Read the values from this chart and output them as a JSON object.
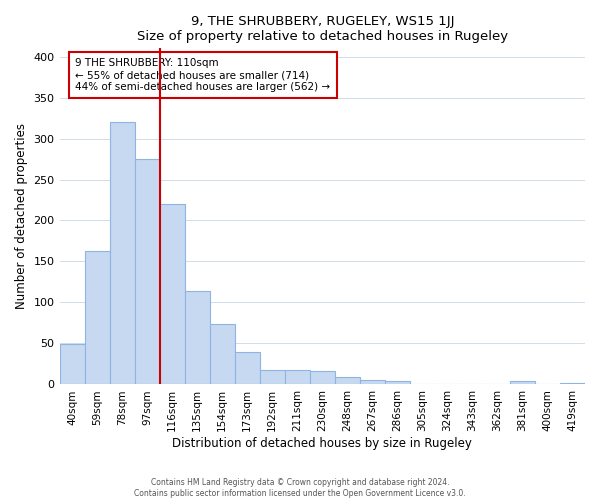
{
  "title": "9, THE SHRUBBERY, RUGELEY, WS15 1JJ",
  "subtitle": "Size of property relative to detached houses in Rugeley",
  "xlabel": "Distribution of detached houses by size in Rugeley",
  "ylabel": "Number of detached properties",
  "footer_line1": "Contains HM Land Registry data © Crown copyright and database right 2024.",
  "footer_line2": "Contains public sector information licensed under the Open Government Licence v3.0.",
  "bar_labels": [
    "40sqm",
    "59sqm",
    "78sqm",
    "97sqm",
    "116sqm",
    "135sqm",
    "154sqm",
    "173sqm",
    "192sqm",
    "211sqm",
    "230sqm",
    "248sqm",
    "267sqm",
    "286sqm",
    "305sqm",
    "324sqm",
    "343sqm",
    "362sqm",
    "381sqm",
    "400sqm",
    "419sqm"
  ],
  "bar_values": [
    49,
    163,
    320,
    275,
    220,
    114,
    74,
    39,
    18,
    18,
    16,
    9,
    5,
    4,
    0,
    0,
    0,
    0,
    4,
    0,
    2
  ],
  "bar_color": "#c6d9f0",
  "bar_edge_color": "#8db4e2",
  "vline_x": 3.5,
  "vline_color": "#cc0000",
  "annotation_title": "9 THE SHRUBBERY: 110sqm",
  "annotation_line1": "← 55% of detached houses are smaller (714)",
  "annotation_line2": "44% of semi-detached houses are larger (562) →",
  "annotation_box_edge": "#cc0000",
  "ylim": [
    0,
    410
  ],
  "yticks": [
    0,
    50,
    100,
    150,
    200,
    250,
    300,
    350,
    400
  ]
}
